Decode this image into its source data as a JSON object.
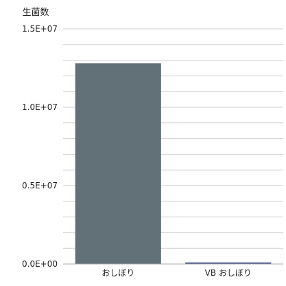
{
  "chart_data": {
    "type": "bar",
    "ylabel": "生菌数",
    "categories": [
      "おしぼり",
      "VB おしぼり"
    ],
    "values": [
      12800000,
      100000
    ],
    "ylim": [
      0,
      15000000
    ],
    "yticks": [
      {
        "value": 0,
        "label": "0.0E+00"
      },
      {
        "value": 5000000,
        "label": "0.5E+07"
      },
      {
        "value": 10000000,
        "label": "1.0E+07"
      },
      {
        "value": 15000000,
        "label": "1.5E+07"
      }
    ],
    "minor_gridline_count": 15,
    "grid": true,
    "colors": {
      "bar": "#627178",
      "small_bar": "#4a4f8c",
      "gridline": "#cfcfcf",
      "baseline": "#a8a8a8",
      "text": "#222222"
    }
  }
}
